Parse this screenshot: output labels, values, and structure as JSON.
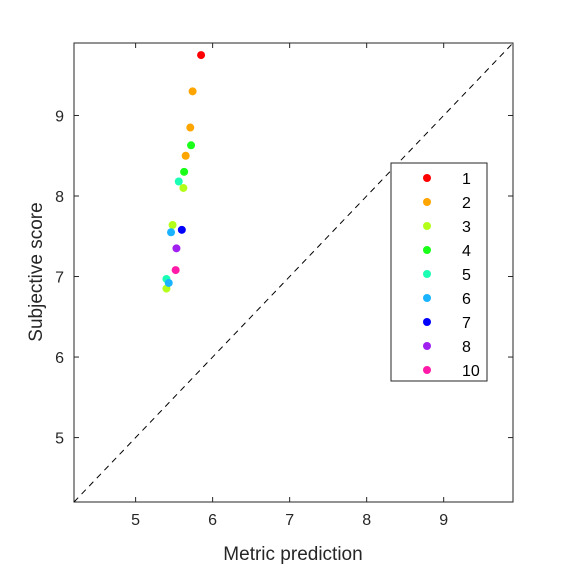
{
  "chart_data": {
    "type": "scatter",
    "title": "",
    "xlabel": "Metric prediction",
    "ylabel": "Subjective score",
    "xlim": [
      4.2,
      9.9
    ],
    "ylim": [
      4.2,
      9.9
    ],
    "x_ticks": [
      5,
      6,
      7,
      8,
      9
    ],
    "y_ticks": [
      5,
      6,
      7,
      8,
      9
    ],
    "grid": false,
    "diagonal_reference": true,
    "legend_position": "right",
    "series": [
      {
        "name": "1",
        "color": "#ff0000",
        "points": [
          {
            "x": 5.85,
            "y": 9.75
          }
        ]
      },
      {
        "name": "2",
        "color": "#ffa500",
        "points": [
          {
            "x": 5.74,
            "y": 9.3
          },
          {
            "x": 5.71,
            "y": 8.85
          },
          {
            "x": 5.65,
            "y": 8.5
          }
        ]
      },
      {
        "name": "3",
        "color": "#b3ff1a",
        "points": [
          {
            "x": 5.62,
            "y": 8.1
          },
          {
            "x": 5.48,
            "y": 7.64
          },
          {
            "x": 5.4,
            "y": 6.85
          }
        ]
      },
      {
        "name": "4",
        "color": "#1aff1a",
        "points": [
          {
            "x": 5.72,
            "y": 8.63
          },
          {
            "x": 5.63,
            "y": 8.3
          }
        ]
      },
      {
        "name": "5",
        "color": "#1affb3",
        "points": [
          {
            "x": 5.56,
            "y": 8.18
          },
          {
            "x": 5.4,
            "y": 6.97
          }
        ]
      },
      {
        "name": "6",
        "color": "#1ab3ff",
        "points": [
          {
            "x": 5.46,
            "y": 7.55
          },
          {
            "x": 5.43,
            "y": 6.92
          }
        ]
      },
      {
        "name": "7",
        "color": "#0000ff",
        "points": [
          {
            "x": 5.6,
            "y": 7.58
          }
        ]
      },
      {
        "name": "8",
        "color": "#a020f0",
        "points": [
          {
            "x": 5.53,
            "y": 7.35
          }
        ]
      },
      {
        "name": "10",
        "color": "#ff1aa8",
        "points": [
          {
            "x": 5.52,
            "y": 7.08
          }
        ]
      }
    ]
  }
}
